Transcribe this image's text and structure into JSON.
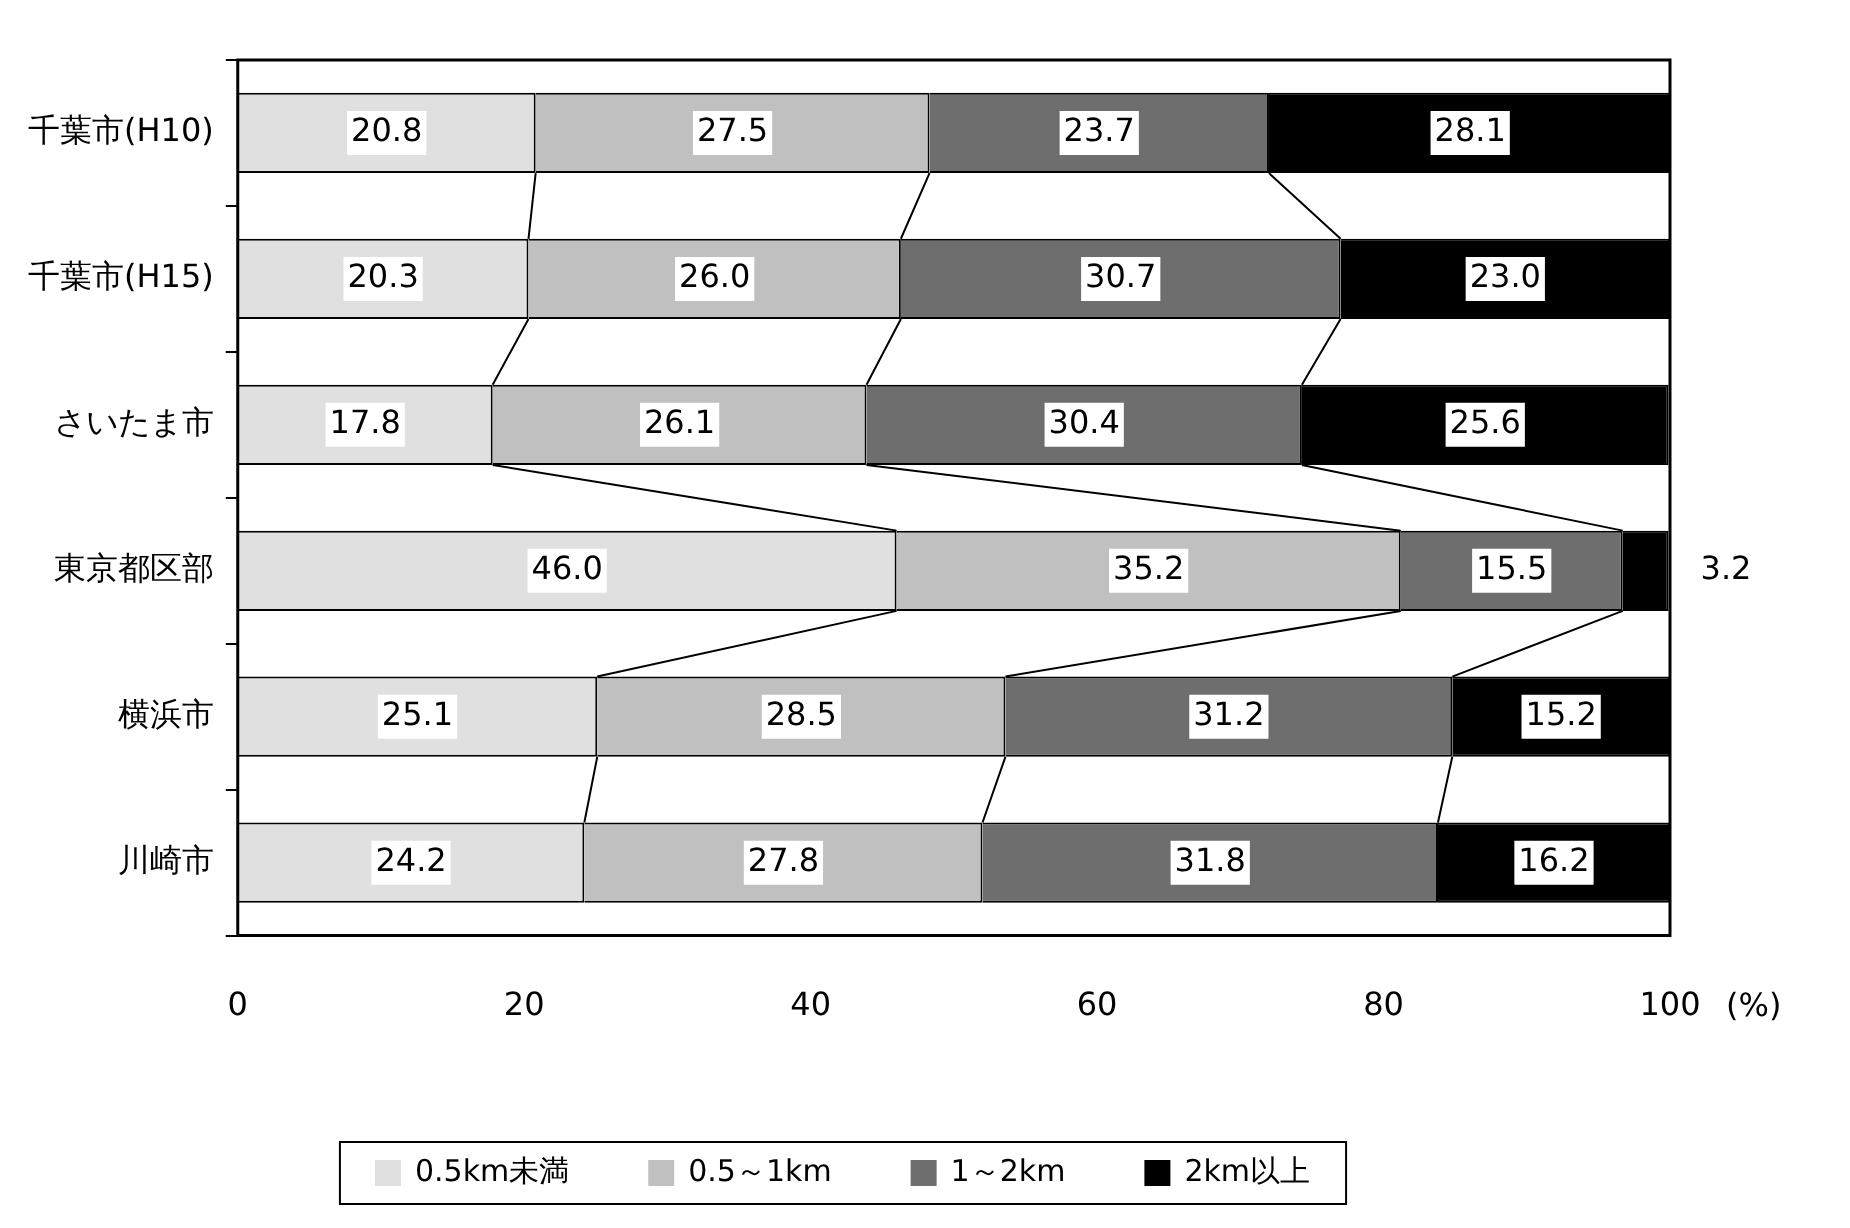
{
  "chart_data": {
    "type": "bar",
    "orientation": "horizontal",
    "stacked": true,
    "xlabel": "(%)",
    "categories": [
      "千葉市(H10)",
      "千葉市(H15)",
      "さいたま市",
      "東京都区部",
      "横浜市",
      "川崎市"
    ],
    "series": [
      {
        "name": "0.5km未満",
        "color": "#e0e0e0",
        "values": [
          20.8,
          20.3,
          17.8,
          46.0,
          25.1,
          24.2
        ],
        "value_labels": [
          "20.8",
          "20.3",
          "17.8",
          "46.0",
          "25.1",
          "24.2"
        ]
      },
      {
        "name": "0.5～1km",
        "color": "#c0c0c0",
        "values": [
          27.5,
          26.0,
          26.1,
          35.2,
          28.5,
          27.8
        ],
        "value_labels": [
          "27.5",
          "26.0",
          "26.1",
          "35.2",
          "28.5",
          "27.8"
        ]
      },
      {
        "name": "1～2km",
        "color": "#6e6e6e",
        "values": [
          23.7,
          30.7,
          30.4,
          15.5,
          31.2,
          31.8
        ],
        "value_labels": [
          "23.7",
          "30.7",
          "30.4",
          "15.5",
          "31.2",
          "31.8"
        ]
      },
      {
        "name": "2km以上",
        "color": "#000000",
        "values": [
          28.1,
          23.0,
          25.6,
          3.2,
          15.2,
          16.2
        ],
        "value_labels": [
          "28.1",
          "23.0",
          "25.6",
          "3.2",
          "15.2",
          "16.2"
        ]
      }
    ],
    "xlim": [
      0,
      100
    ],
    "xticks": [
      0,
      20,
      40,
      60,
      80,
      100
    ],
    "grid": false,
    "legend": "bottom"
  }
}
